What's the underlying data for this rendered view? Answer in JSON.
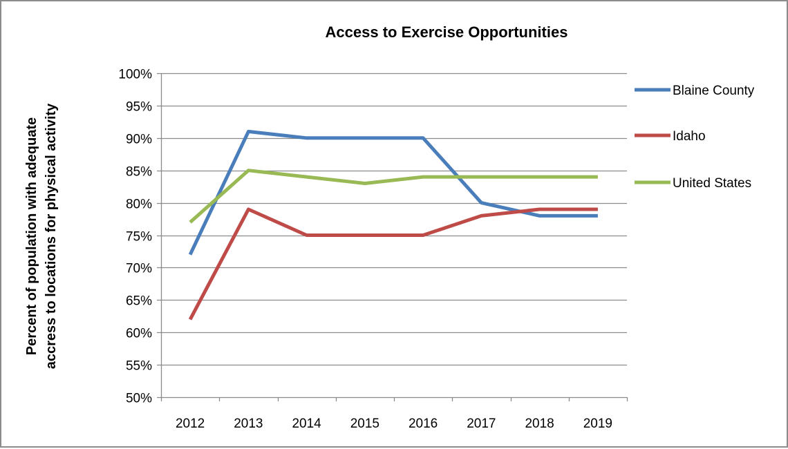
{
  "chart_data": {
    "type": "line",
    "title": "Access to Exercise Opportunities",
    "xlabel": "",
    "ylabel_lines": [
      "Percent of population with adequate",
      "accress to locations for physical activity"
    ],
    "categories": [
      "2012",
      "2013",
      "2014",
      "2015",
      "2016",
      "2017",
      "2018",
      "2019"
    ],
    "ylim": [
      50,
      100
    ],
    "ytick_step": 5,
    "ytick_labels": [
      "100%",
      "95%",
      "90%",
      "85%",
      "80%",
      "75%",
      "70%",
      "65%",
      "60%",
      "55%",
      "50%"
    ],
    "grid": true,
    "legend_position": "right",
    "series": [
      {
        "name": "Blaine County",
        "color": "#4a7ebb",
        "values": [
          72,
          91,
          90,
          90,
          90,
          80,
          78,
          78
        ]
      },
      {
        "name": "Idaho",
        "color": "#be4b48",
        "values": [
          62,
          79,
          75,
          75,
          75,
          78,
          79,
          79
        ]
      },
      {
        "name": "United States",
        "color": "#98b954",
        "values": [
          77,
          85,
          84,
          83,
          84,
          84,
          84,
          84
        ]
      }
    ]
  }
}
